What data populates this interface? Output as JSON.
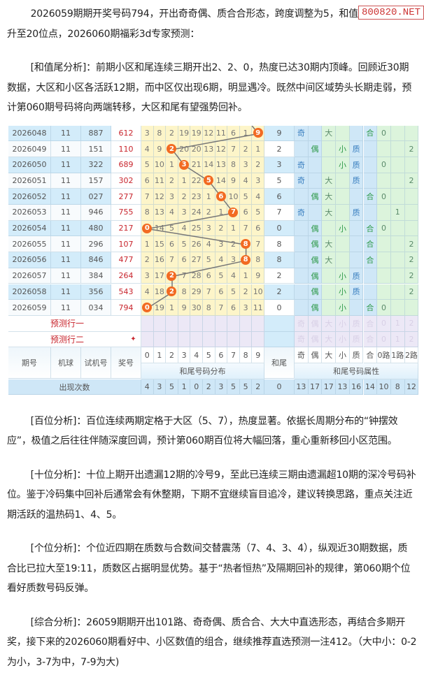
{
  "watermark": "800820.NET",
  "paragraphs": [
    "2026059期期开奖号码794，开出奇奇偶、质合合形态，跨度调整为5，和值升至20位点，2026060期福彩3d专家预测：",
    "[和值尾分析]：前期小区和尾连续三期开出2、2、0，热度已达30期内顶峰。回顾近30期数据，大区和小区各活跃12期，而中区仅出现6期，明显遇冷。既然中间区域势头长期走弱，预计第060期号码将向两端转移，大区和尾有望强势回补。",
    "[百位分析]：百位连续两期定格于大区（5、7），热度显著。依据长周期分布的“钟摆效应”，极值之后往往伴随深度回调，预计第060期百位将大幅回落，重心重新移回小区范围。",
    "[十位分析]：十位上期开出遗漏12期的冷号9，至此已连续三期由遗漏超10期的深冷号码补位。鉴于冷码集中回补后通常会有休整期，下期不宜继续盲目追冷，建议转换思路，重点关注近期活跃的温热码1、4、5。",
    "[个位分析]：个位近四期在质数与合数间交替震荡（7、4、3、4），纵观近30期数据，质合比已拉大至19:11，质数区占据明显优势。基于“热者恒热”及隔期回补的规律，第060期个位看好质数号码反弹。",
    "[综合分析]：26059期期开出101路、奇奇偶、质合合、大大中直选形态，再结合多期开奖，接下来的2026060期看好中、小区数值的组合，继续推荐直选预测一注412。（大中小：0-2为小，3-7为中，7-9为大)"
  ],
  "table": {
    "headers": {
      "period": "期号",
      "ball": "机球",
      "test": "试机号",
      "draw": "奖号",
      "digits": [
        "0",
        "1",
        "2",
        "3",
        "4",
        "5",
        "6",
        "7",
        "8",
        "9"
      ],
      "digits_group": "和尾号码分布",
      "tail": "和尾",
      "attrs": [
        "奇",
        "偶",
        "大",
        "小",
        "质",
        "合",
        "0路",
        "1路",
        "2路"
      ],
      "attrs_group": "和尾号码属性"
    },
    "rows": [
      {
        "period": "2026048",
        "ball": "11",
        "test": "887",
        "draw": "612",
        "tail": "9",
        "miss": [
          "3",
          "8",
          "2",
          "19",
          "19",
          "12",
          "11",
          "6",
          "1",
          "9"
        ],
        "attrs": [
          "奇",
          "",
          "大",
          "",
          "",
          "合",
          "0",
          "",
          ""
        ]
      },
      {
        "period": "2026049",
        "ball": "11",
        "test": "151",
        "draw": "110",
        "tail": "2",
        "miss": [
          "4",
          "9",
          "2",
          "20",
          "20",
          "13",
          "12",
          "7",
          "2",
          "1"
        ],
        "attrs": [
          "",
          "偶",
          "",
          "小",
          "质",
          "",
          "",
          "",
          "2"
        ]
      },
      {
        "period": "2026050",
        "ball": "11",
        "test": "322",
        "draw": "689",
        "tail": "3",
        "miss": [
          "5",
          "10",
          "1",
          "3",
          "21",
          "14",
          "13",
          "8",
          "3",
          "2"
        ],
        "attrs": [
          "奇",
          "",
          "",
          "小",
          "质",
          "",
          "0",
          "",
          ""
        ]
      },
      {
        "period": "2026051",
        "ball": "11",
        "test": "157",
        "draw": "302",
        "tail": "5",
        "miss": [
          "6",
          "11",
          "2",
          "1",
          "22",
          "5",
          "14",
          "9",
          "4",
          "3"
        ],
        "attrs": [
          "奇",
          "",
          "大",
          "",
          "质",
          "",
          "",
          "",
          "2"
        ]
      },
      {
        "period": "2026052",
        "ball": "11",
        "test": "027",
        "draw": "277",
        "tail": "6",
        "miss": [
          "7",
          "12",
          "3",
          "2",
          "23",
          "1",
          "6",
          "10",
          "5",
          "4"
        ],
        "attrs": [
          "",
          "偶",
          "大",
          "",
          "",
          "合",
          "0",
          "",
          ""
        ]
      },
      {
        "period": "2026053",
        "ball": "11",
        "test": "946",
        "draw": "755",
        "tail": "7",
        "miss": [
          "8",
          "13",
          "4",
          "3",
          "24",
          "2",
          "1",
          "7",
          "6",
          "5"
        ],
        "attrs": [
          "奇",
          "",
          "大",
          "",
          "质",
          "",
          "",
          "1",
          ""
        ]
      },
      {
        "period": "2026054",
        "ball": "11",
        "test": "480",
        "draw": "217",
        "tail": "0",
        "miss": [
          "0",
          "14",
          "5",
          "4",
          "25",
          "3",
          "2",
          "1",
          "7",
          "6"
        ],
        "attrs": [
          "",
          "偶",
          "",
          "小",
          "",
          "合",
          "0",
          "",
          ""
        ]
      },
      {
        "period": "2026055",
        "ball": "11",
        "test": "296",
        "draw": "107",
        "tail": "8",
        "miss": [
          "1",
          "15",
          "6",
          "5",
          "26",
          "4",
          "3",
          "2",
          "8",
          "7"
        ],
        "attrs": [
          "",
          "偶",
          "大",
          "",
          "",
          "合",
          "",
          "",
          "2"
        ]
      },
      {
        "period": "2026056",
        "ball": "11",
        "test": "846",
        "draw": "477",
        "tail": "8",
        "miss": [
          "2",
          "16",
          "7",
          "6",
          "27",
          "5",
          "4",
          "3",
          "8",
          "8"
        ],
        "attrs": [
          "",
          "偶",
          "大",
          "",
          "",
          "合",
          "",
          "",
          "2"
        ]
      },
      {
        "period": "2026057",
        "ball": "11",
        "test": "384",
        "draw": "264",
        "tail": "2",
        "miss": [
          "3",
          "17",
          "2",
          "7",
          "28",
          "6",
          "5",
          "4",
          "1",
          "9"
        ],
        "attrs": [
          "",
          "偶",
          "",
          "小",
          "质",
          "",
          "",
          "",
          "2"
        ]
      },
      {
        "period": "2026058",
        "ball": "11",
        "test": "356",
        "draw": "543",
        "tail": "2",
        "miss": [
          "4",
          "18",
          "2",
          "8",
          "29",
          "7",
          "6",
          "5",
          "2",
          "10"
        ],
        "attrs": [
          "",
          "偶",
          "",
          "小",
          "质",
          "",
          "",
          "",
          "2"
        ]
      },
      {
        "period": "2026059",
        "ball": "11",
        "test": "034",
        "draw": "794",
        "tail": "0",
        "miss": [
          "0",
          "19",
          "1",
          "9",
          "30",
          "8",
          "7",
          "6",
          "3",
          "11"
        ],
        "attrs": [
          "",
          "偶",
          "",
          "小",
          "",
          "合",
          "0",
          "",
          ""
        ]
      }
    ],
    "predict_rows": [
      {
        "label": "预测行一",
        "attrs": [
          "奇",
          "偶",
          "大",
          "小",
          "质",
          "合",
          "0",
          "1",
          "2"
        ]
      },
      {
        "label": "预测行二",
        "marker": "✦",
        "attrs": [
          "奇",
          "偶",
          "大",
          "小",
          "质",
          "合",
          "0",
          "1",
          "2"
        ]
      }
    ],
    "counts": {
      "label": "出现次数",
      "digits": [
        "4",
        "3",
        "5",
        "1",
        "0",
        "2",
        "3",
        "5",
        "5",
        "2"
      ],
      "tail": "0",
      "attrs": [
        "13",
        "17",
        "17",
        "13",
        "16",
        "14",
        "10",
        "8",
        "12"
      ]
    },
    "colors": {
      "blue_row": "#d3ecfa",
      "yellow": "#fdf5c9",
      "green": "#dff6df",
      "marker": "#f26a22",
      "draw_red": "#c8252d",
      "predict": "#ece8f6"
    }
  }
}
